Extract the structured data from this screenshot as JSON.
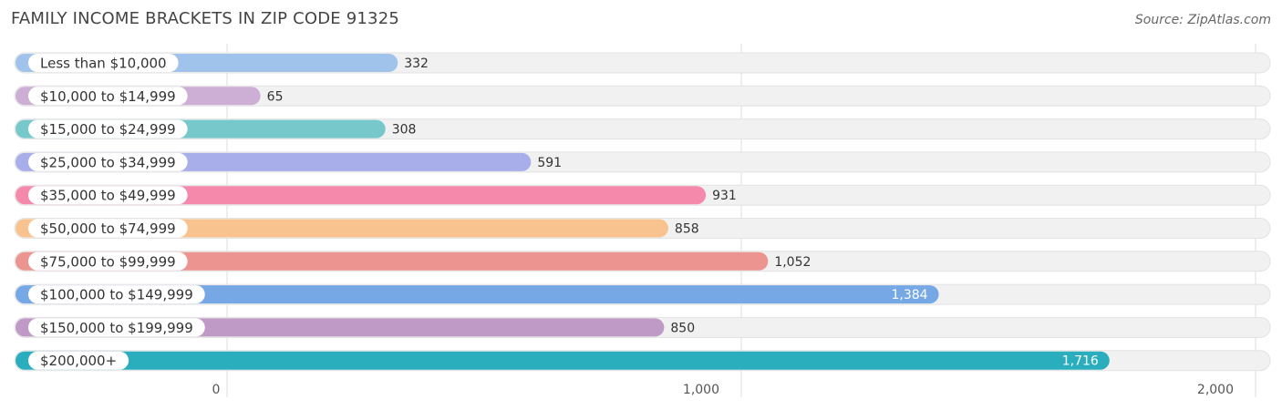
{
  "title": "FAMILY INCOME BRACKETS IN ZIP CODE 91325",
  "source": "Source: ZipAtlas.com",
  "chart_data": {
    "type": "bar",
    "orientation": "horizontal",
    "title": "FAMILY INCOME BRACKETS IN ZIP CODE 91325",
    "categories": [
      "Less than $10,000",
      "$10,000 to $14,999",
      "$15,000 to $24,999",
      "$25,000 to $34,999",
      "$35,000 to $49,999",
      "$50,000 to $74,999",
      "$75,000 to $99,999",
      "$100,000 to $149,999",
      "$150,000 to $199,999",
      "$200,000+"
    ],
    "values": [
      332,
      65,
      308,
      591,
      931,
      858,
      1052,
      1384,
      850,
      1716
    ],
    "value_labels": [
      "332",
      "65",
      "308",
      "591",
      "931",
      "858",
      "1,052",
      "1,384",
      "850",
      "1,716"
    ],
    "colors": [
      "#9fc3ea",
      "#cdaed5",
      "#77c8cb",
      "#a7aee9",
      "#f589ab",
      "#f9c38f",
      "#ec9490",
      "#76a8e6",
      "#bf9ac7",
      "#2aaebe"
    ],
    "xlim": [
      0,
      2000
    ],
    "xticks": [
      0,
      1000,
      2000
    ],
    "xtick_labels": [
      "0",
      "1,000",
      "2,000"
    ],
    "grid": true,
    "legend": "none"
  }
}
